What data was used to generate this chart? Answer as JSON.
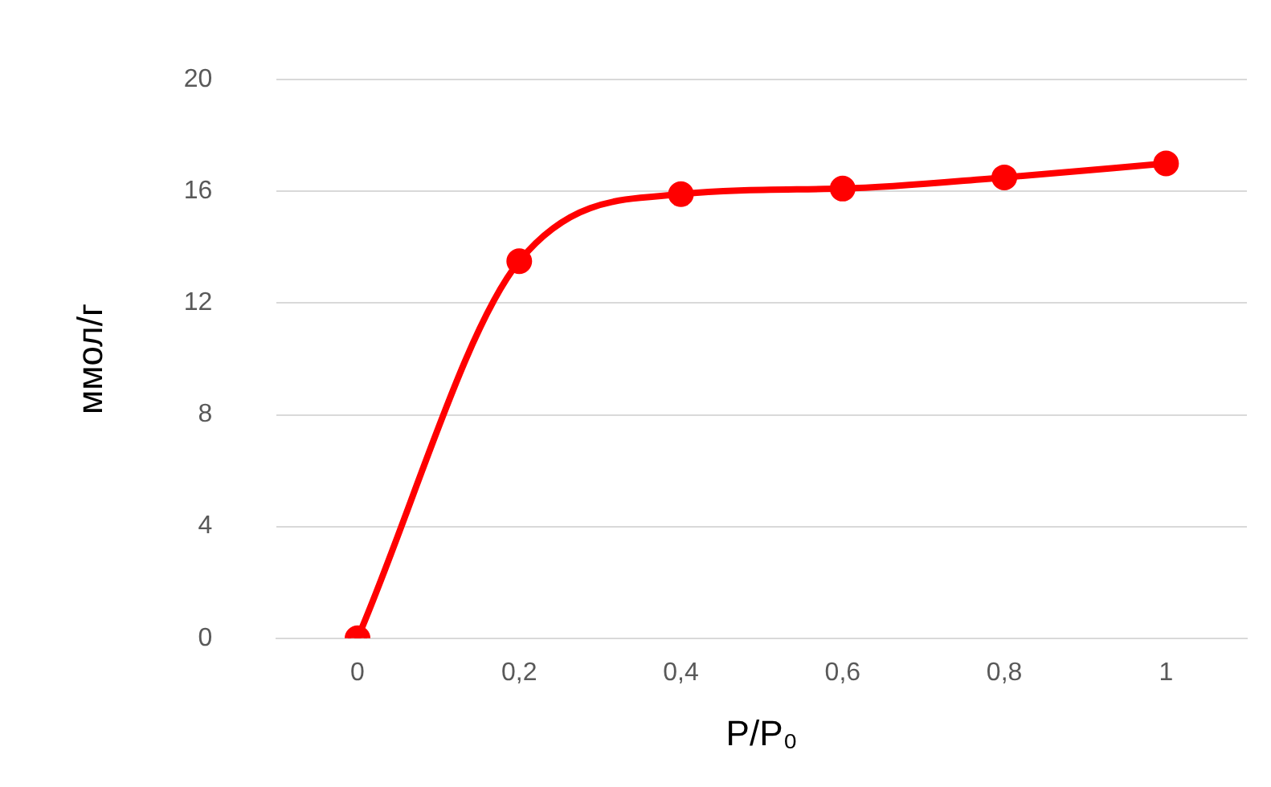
{
  "chart_data": {
    "type": "line",
    "xlabel": "P/P₀",
    "ylabel": "ммол/г",
    "categories": [
      "0",
      "0,2",
      "0,4",
      "0,6",
      "0,8",
      "1"
    ],
    "series": [
      {
        "color": "#ff0000",
        "values": [
          0,
          13.5,
          15.9,
          16.1,
          16.5,
          17.0
        ]
      }
    ],
    "ylim": [
      0,
      20
    ],
    "yticks": [
      0,
      4,
      8,
      12,
      16,
      20
    ],
    "grid": "y",
    "marker": "circle",
    "line_style": "solid",
    "legend": false
  }
}
